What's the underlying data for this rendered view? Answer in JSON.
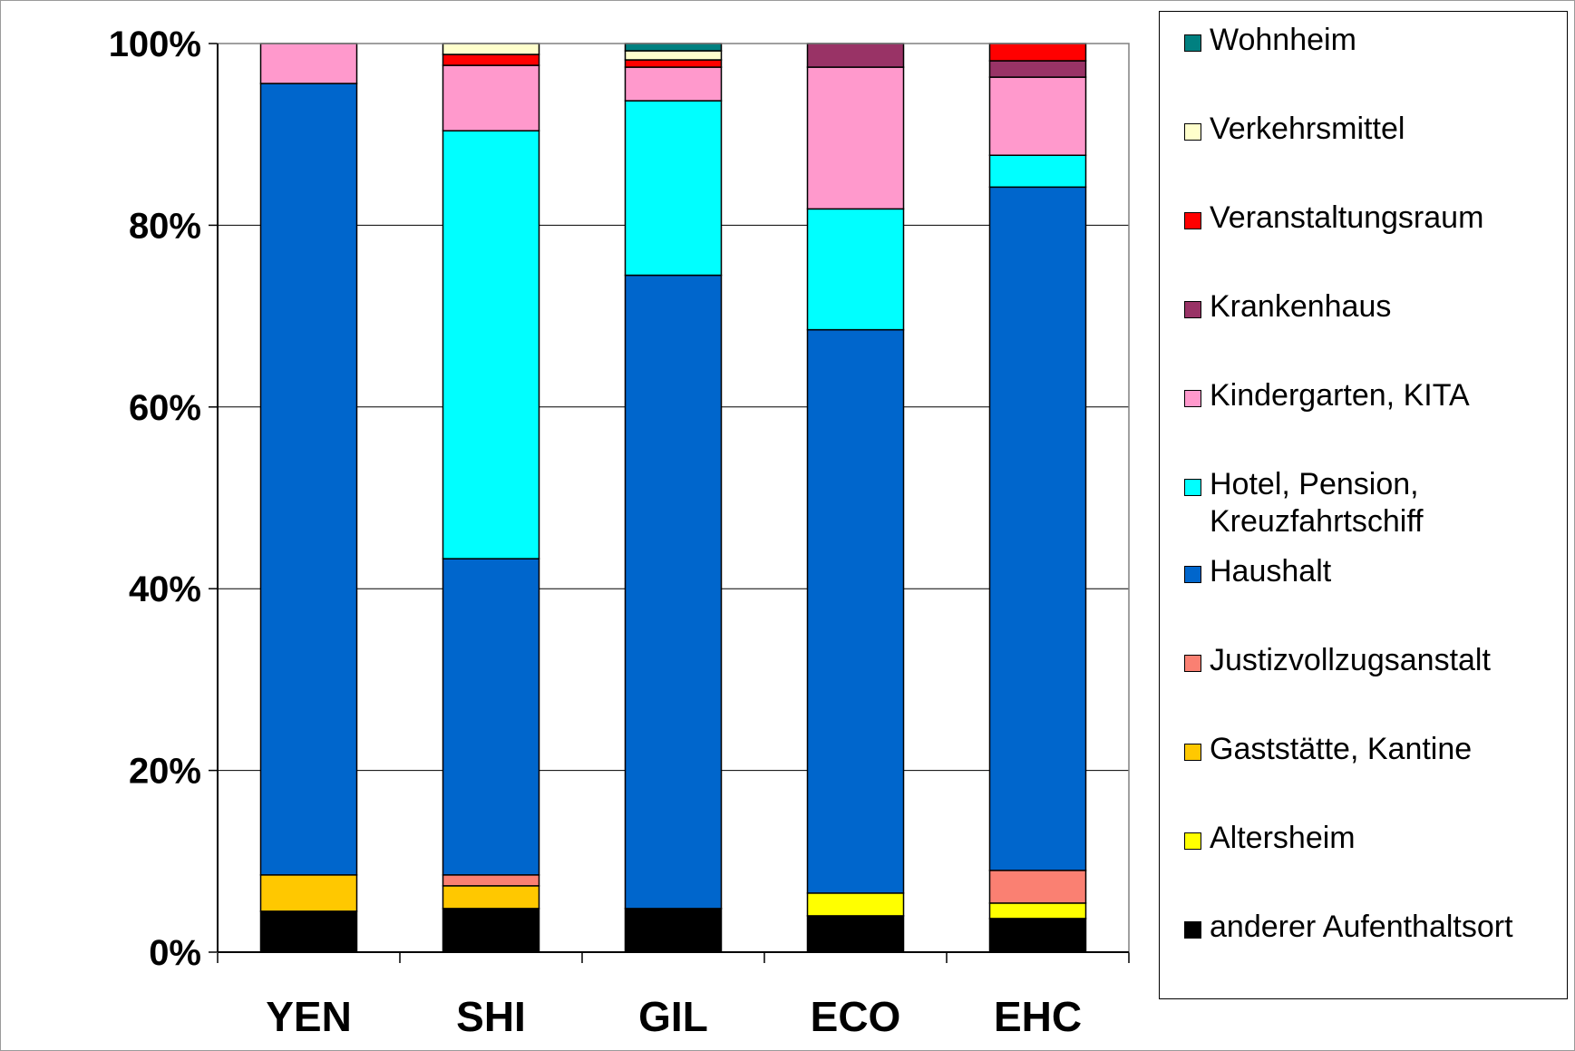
{
  "chart_data": {
    "type": "bar",
    "stacked": true,
    "normalized_percent": true,
    "categories": [
      "YEN",
      "SHI",
      "GIL",
      "ECO",
      "EHC"
    ],
    "yticks": [
      "0%",
      "20%",
      "40%",
      "60%",
      "80%",
      "100%"
    ],
    "ylim": [
      0,
      100
    ],
    "grid": "horizontal",
    "legend_position": "right",
    "series": [
      {
        "name": "anderer Aufenthaltsort",
        "color": "#000000",
        "values": [
          4.5,
          4.8,
          4.8,
          4.0,
          3.7
        ]
      },
      {
        "name": "Altersheim",
        "color": "#FFFF00",
        "values": [
          0,
          0,
          0,
          2.5,
          1.7
        ]
      },
      {
        "name": "Gaststätte, Kantine",
        "color": "#FFC800",
        "values": [
          4.0,
          2.5,
          0,
          0,
          0
        ]
      },
      {
        "name": "Justizvollzugsanstalt",
        "color": "#FA8072",
        "values": [
          0,
          1.2,
          0,
          0,
          3.6
        ]
      },
      {
        "name": "Haushalt",
        "color": "#0066CC",
        "values": [
          87.1,
          34.8,
          69.7,
          62.0,
          75.2
        ]
      },
      {
        "name": "Hotel, Pension, Kreuzfahrtschiff",
        "color": "#00FFFF",
        "values": [
          0,
          47.1,
          19.2,
          13.3,
          3.5
        ]
      },
      {
        "name": "Kindergarten, KITA",
        "color": "#FF99CC",
        "values": [
          4.4,
          7.2,
          3.7,
          15.6,
          8.6
        ]
      },
      {
        "name": "Krankenhaus",
        "color": "#993366",
        "values": [
          0,
          0,
          0,
          2.6,
          1.8
        ]
      },
      {
        "name": "Veranstaltungsraum",
        "color": "#FF0000",
        "values": [
          0,
          1.2,
          0.8,
          0,
          1.9
        ]
      },
      {
        "name": "Verkehrsmittel",
        "color": "#FFFFCC",
        "values": [
          0,
          1.2,
          1.0,
          0,
          0
        ]
      },
      {
        "name": "Wohnheim",
        "color": "#008080",
        "values": [
          0,
          0,
          0.8,
          0,
          0
        ]
      }
    ],
    "legend_order": [
      "Wohnheim",
      "Verkehrsmittel",
      "Veranstaltungsraum",
      "Krankenhaus",
      "Kindergarten, KITA",
      "Hotel, Pension, Kreuzfahrtschiff",
      "Haushalt",
      "Justizvollzugsanstalt",
      "Gaststätte, Kantine",
      "Altersheim",
      "anderer Aufenthaltsort"
    ]
  }
}
